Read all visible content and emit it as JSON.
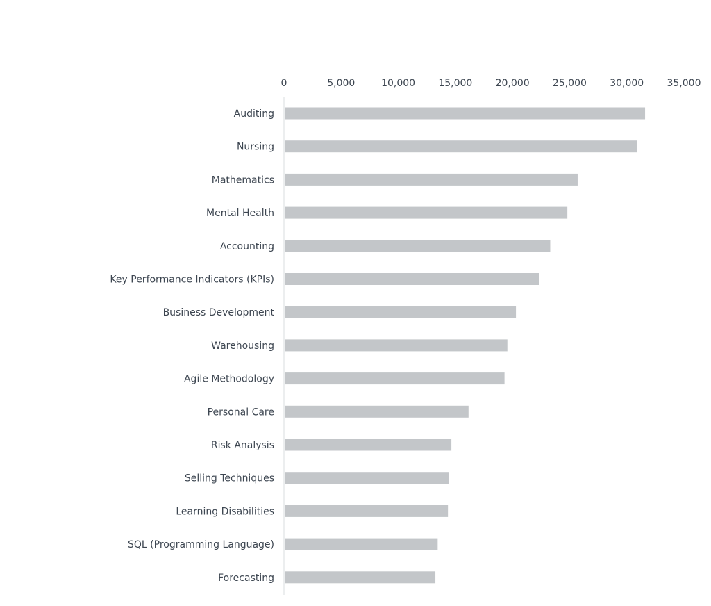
{
  "colors": {
    "bar": "#c3c6c9",
    "axis": "#d9dcdf",
    "text": "#3d4651"
  },
  "chart_data": {
    "type": "bar",
    "orientation": "horizontal",
    "categories": [
      "Auditing",
      "Nursing",
      "Mathematics",
      "Mental Health",
      "Accounting",
      "Key Performance Indicators (KPIs)",
      "Business Development",
      "Warehousing",
      "Agile Methodology",
      "Personal Care",
      "Risk Analysis",
      "Selling Techniques",
      "Learning Disabilities",
      "SQL (Programming Language)",
      "Forecasting"
    ],
    "values": [
      31600,
      30900,
      25700,
      24800,
      23300,
      22300,
      20300,
      19550,
      19300,
      16150,
      14650,
      14400,
      14350,
      13450,
      13250
    ],
    "xlim": [
      0,
      35000
    ],
    "xticks": [
      0,
      5000,
      10000,
      15000,
      20000,
      25000,
      30000,
      35000
    ],
    "xtick_labels": [
      "0",
      "5,000",
      "10,000",
      "15,000",
      "20,000",
      "25,000",
      "30,000",
      "35,000"
    ],
    "axis_position": "top",
    "grid": false,
    "legend": "none",
    "title": "",
    "xlabel": "",
    "ylabel": ""
  }
}
